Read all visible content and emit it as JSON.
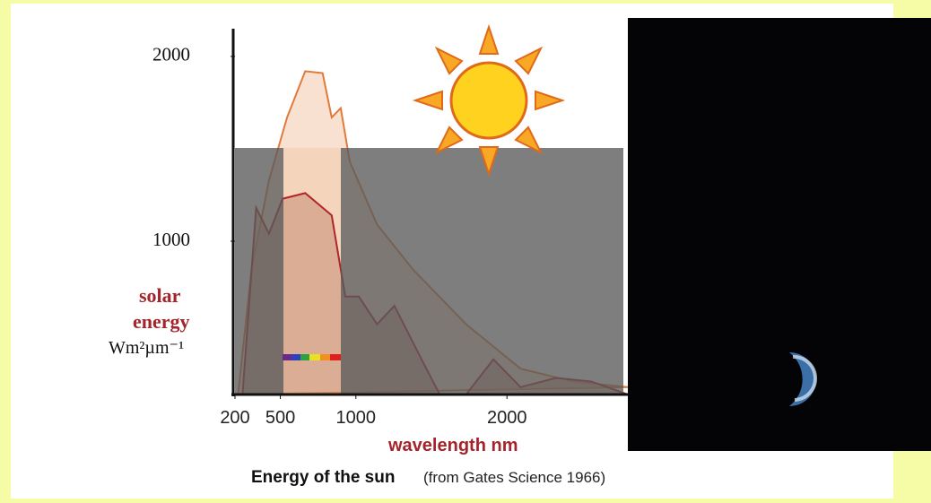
{
  "chart_data": {
    "type": "area",
    "title": "Energy of the sun",
    "source": "(from Gates Science 1966)",
    "xlabel": "wavelength nm",
    "ylabel": [
      "solar",
      "energy"
    ],
    "yunit": "Wm²µm⁻¹",
    "xlim": [
      200,
      2800
    ],
    "xticks": [
      200,
      500,
      1000,
      2000
    ],
    "ylim": [
      170,
      2150
    ],
    "yticks": [
      1000,
      2000
    ],
    "series": [
      {
        "color": "#e07a3a",
        "fill": "#f3cdb3",
        "x": [
          220,
          310,
          425,
          545,
          665,
          780,
          840,
          900,
          960,
          1140,
          1375,
          1730,
          2090,
          2440,
          2800
        ],
        "values": [
          170,
          850,
          1330,
          1670,
          1920,
          1910,
          1670,
          1720,
          1430,
          1090,
          850,
          550,
          310,
          240,
          210
        ]
      },
      {
        "color": "#b0242a",
        "fill": "#c9927a",
        "x": [
          250,
          340,
          425,
          515,
          665,
          840,
          930,
          1020,
          1140,
          1255,
          1435,
          1555,
          1730,
          1910,
          2090,
          2325,
          2560,
          2800
        ],
        "values": [
          170,
          1180,
          1040,
          1230,
          1260,
          1140,
          700,
          700,
          550,
          650,
          360,
          170,
          170,
          360,
          210,
          260,
          240,
          170
        ]
      }
    ]
  }
}
